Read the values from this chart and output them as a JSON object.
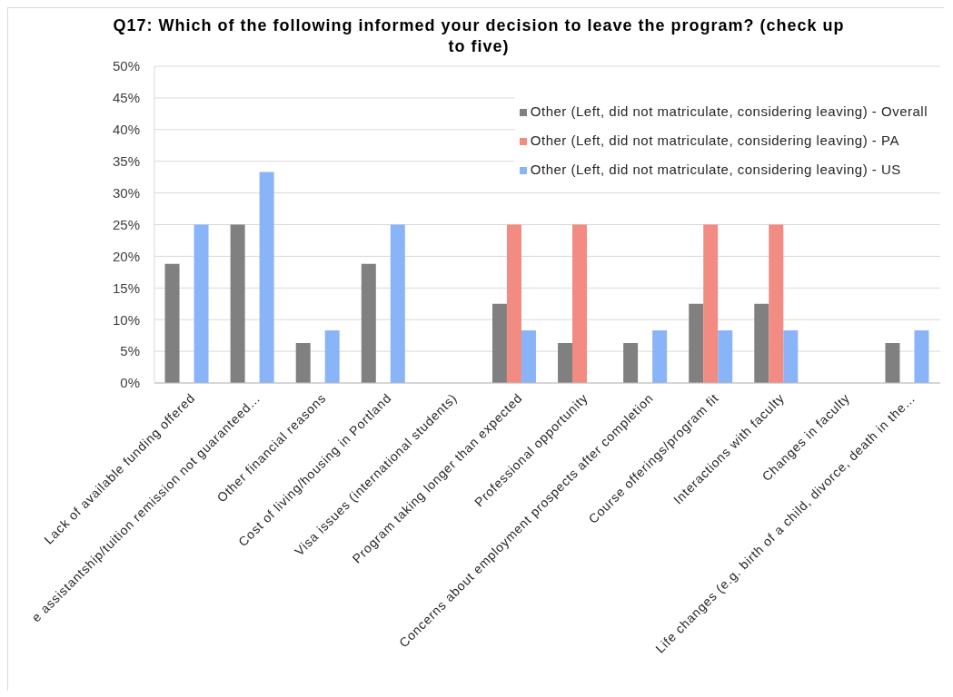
{
  "chart_data": {
    "type": "bar",
    "title": "Q17: Which of the following informed your decision to leave the program? (check up to five)",
    "categories": [
      "Lack of available funding offered",
      "e assistantship/tuition remission not guaranteed…",
      "Other financial reasons",
      "Cost of living/housing in Portland",
      "Visa issues (international students)",
      "Program taking longer than expected",
      "Professional opportunity",
      "Concerns about employment prospects after completion",
      "Course offerings/program fit",
      "Interactions with faculty",
      "Changes in faculty",
      "Life changes (e.g. birth of a child, divorce, death in the…"
    ],
    "series": [
      {
        "name": "Other (Left, did not matriculate, considering leaving) - Overall",
        "color": "#808080",
        "values": [
          18.8,
          25,
          6.3,
          18.8,
          0,
          12.5,
          6.3,
          6.3,
          12.5,
          12.5,
          0,
          6.3
        ]
      },
      {
        "name": "Other (Left, did not matriculate, considering leaving) - PA",
        "color": "#f28b82",
        "values": [
          0,
          0,
          0,
          0,
          0,
          25,
          25,
          0,
          25,
          25,
          0,
          0
        ]
      },
      {
        "name": "Other (Left, did not matriculate, considering leaving) - US",
        "color": "#8ab4f8",
        "values": [
          25,
          33.3,
          8.3,
          25,
          0,
          8.3,
          0,
          8.3,
          8.3,
          8.3,
          0,
          8.3
        ]
      }
    ],
    "ylim": [
      0,
      50
    ],
    "yticks": [
      {
        "value": 0,
        "label": "0%"
      },
      {
        "value": 5,
        "label": "5%"
      },
      {
        "value": 10,
        "label": "10%"
      },
      {
        "value": 15,
        "label": "15%"
      },
      {
        "value": 20,
        "label": "20%"
      },
      {
        "value": 25,
        "label": "25%"
      },
      {
        "value": 30,
        "label": "30%"
      },
      {
        "value": 35,
        "label": "35%"
      },
      {
        "value": 40,
        "label": "40%"
      },
      {
        "value": 45,
        "label": "45%"
      },
      {
        "value": 50,
        "label": "50%"
      }
    ],
    "grid": "y",
    "legend": "top right"
  }
}
